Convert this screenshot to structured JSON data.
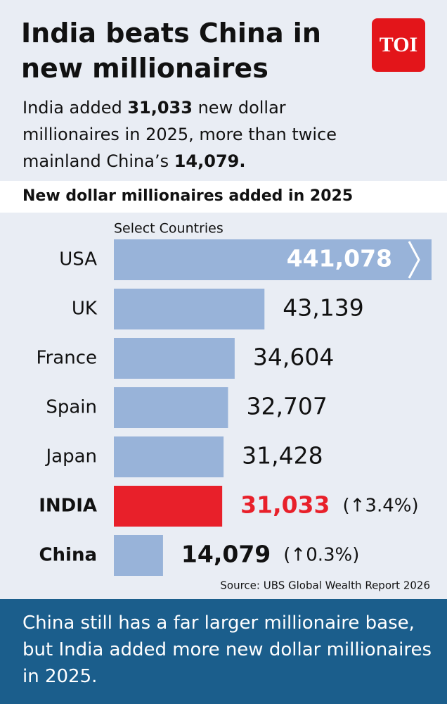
{
  "title": "India beats China in new millionaires",
  "logo": "TOI",
  "subtitle": [
    "India added ",
    "31,033",
    " new dollar millionaires in 2025, more than twice mainland China’s ",
    "14,079."
  ],
  "subtitle_bold": [
    false,
    true,
    false,
    true
  ],
  "chart_data": {
    "type": "bar",
    "orientation": "horizontal",
    "title": "New dollar millionaires added in 2025",
    "axis_label": "Select Countries",
    "categories": [
      "USA",
      "UK",
      "France",
      "Spain",
      "Japan",
      "INDIA",
      "China"
    ],
    "values": [
      441078,
      43139,
      34604,
      32707,
      31428,
      31033,
      14079
    ],
    "value_labels": [
      "441,078",
      "43,139",
      "34,604",
      "32,707",
      "31,428",
      "31,033",
      "14,079"
    ],
    "annotations": [
      null,
      null,
      null,
      null,
      null,
      "(↑3.4%)",
      "(↑0.3%)"
    ],
    "colors": [
      "#98b3d9",
      "#98b3d9",
      "#98b3d9",
      "#98b3d9",
      "#98b3d9",
      "#e8202a",
      "#98b3d9"
    ],
    "xlim": [
      0,
      91000
    ],
    "axis_break": true,
    "source": "Source: UBS Global Wealth Report 2026"
  },
  "footer": "China still has a far larger millionaire base, but India added more new dollar millionaires in 2025."
}
